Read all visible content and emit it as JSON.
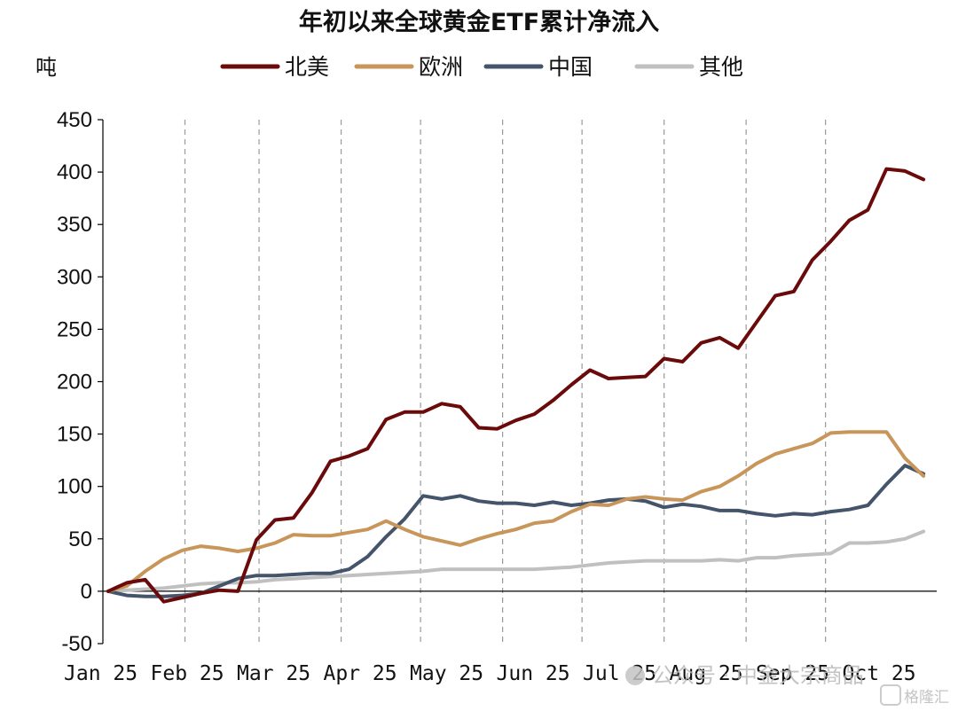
{
  "chart_data": {
    "type": "line",
    "title": "年初以来全球黄金ETF累计净流入",
    "ylabel": "吨",
    "ylim": [
      -50,
      450
    ],
    "yticks": [
      "450",
      "400",
      "350",
      "300",
      "250",
      "200",
      "150",
      "100",
      "50",
      "0",
      "-50"
    ],
    "ytick_values": [
      450,
      400,
      350,
      300,
      250,
      200,
      150,
      100,
      50,
      0,
      -50
    ],
    "xtick_labels": [
      "Jan 25",
      "Feb 25",
      "Mar 25",
      "Apr 25",
      "May 25",
      "Jun 25",
      "Jul 25",
      "Aug 25",
      "Sep 25",
      "Oct 25"
    ],
    "legend_position": "top",
    "vertical_gridlines": "dashed at month boundaries",
    "x": [
      "2025-01-03",
      "2025-01-10",
      "2025-01-17",
      "2025-01-24",
      "2025-01-31",
      "2025-02-07",
      "2025-02-14",
      "2025-02-21",
      "2025-02-28",
      "2025-03-07",
      "2025-03-14",
      "2025-03-21",
      "2025-03-28",
      "2025-04-04",
      "2025-04-11",
      "2025-04-18",
      "2025-04-25",
      "2025-05-02",
      "2025-05-09",
      "2025-05-16",
      "2025-05-23",
      "2025-05-30",
      "2025-06-06",
      "2025-06-13",
      "2025-06-20",
      "2025-06-27",
      "2025-07-04",
      "2025-07-11",
      "2025-07-18",
      "2025-07-25",
      "2025-08-01",
      "2025-08-08",
      "2025-08-15",
      "2025-08-22",
      "2025-08-29",
      "2025-09-05",
      "2025-09-12",
      "2025-09-19",
      "2025-09-26",
      "2025-10-03",
      "2025-10-10",
      "2025-10-17",
      "2025-10-24",
      "2025-10-31",
      "2025-11-07"
    ],
    "series": [
      {
        "name": "北美",
        "color": "#6b0a0a",
        "values": [
          0,
          8,
          11,
          -10,
          -6,
          -2,
          1,
          0,
          49,
          68,
          70,
          94,
          124,
          129,
          136,
          164,
          171,
          171,
          179,
          176,
          156,
          155,
          163,
          169,
          182,
          197,
          211,
          203,
          204,
          205,
          222,
          219,
          237,
          242,
          232,
          257,
          282,
          286,
          316,
          334,
          354,
          364,
          403,
          401,
          393
        ]
      },
      {
        "name": "欧洲",
        "color": "#c8965a",
        "values": [
          0,
          5,
          19,
          31,
          39,
          43,
          41,
          38,
          41,
          46,
          54,
          53,
          53,
          56,
          59,
          67,
          59,
          52,
          48,
          44,
          50,
          55,
          59,
          65,
          67,
          76,
          83,
          82,
          88,
          90,
          88,
          87,
          95,
          100,
          110,
          122,
          131,
          136,
          141,
          151,
          152,
          152,
          152,
          127,
          110
        ]
      },
      {
        "name": "中国",
        "color": "#44546a",
        "values": [
          0,
          -4,
          -5,
          -5,
          -4,
          -2,
          5,
          12,
          15,
          15,
          16,
          17,
          17,
          21,
          33,
          52,
          69,
          91,
          88,
          91,
          86,
          84,
          84,
          82,
          85,
          82,
          84,
          87,
          88,
          86,
          80,
          83,
          81,
          77,
          77,
          74,
          72,
          74,
          73,
          76,
          78,
          82,
          102,
          120,
          112
        ]
      },
      {
        "name": "其他",
        "color": "#c0c0c0",
        "values": [
          0,
          1,
          2,
          3,
          5,
          7,
          8,
          8,
          9,
          11,
          12,
          13,
          14,
          15,
          16,
          17,
          18,
          19,
          21,
          21,
          21,
          21,
          21,
          21,
          22,
          23,
          25,
          27,
          28,
          29,
          29,
          29,
          29,
          30,
          29,
          32,
          32,
          34,
          35,
          36,
          46,
          46,
          47,
          50,
          57
        ]
      }
    ]
  },
  "watermark": {
    "text": "公众号 · 中金大宗商品",
    "logo_text": "格隆汇"
  }
}
